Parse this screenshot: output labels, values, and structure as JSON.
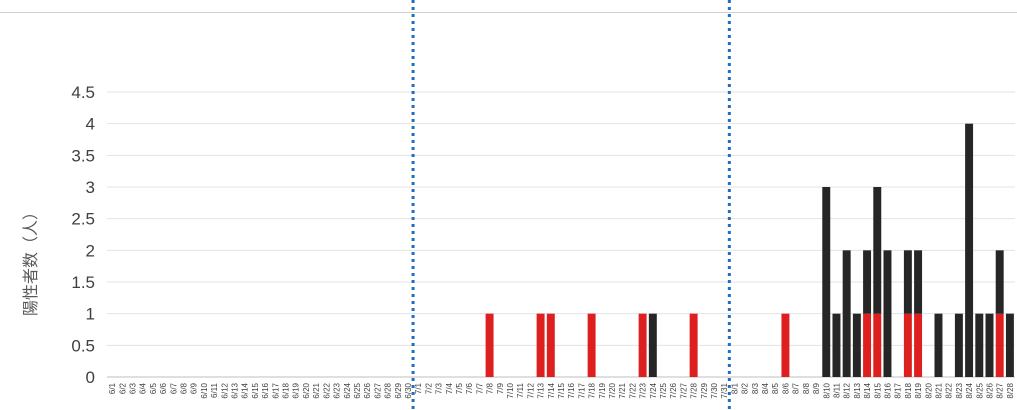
{
  "chart_data": {
    "type": "bar",
    "ylabel": "陽性者数（人）",
    "xlabel": "",
    "title": "",
    "ylim": [
      0,
      4.5
    ],
    "y_ticks": [
      "0",
      "0.5",
      "1",
      "1.5",
      "2",
      "2.5",
      "3",
      "3.5",
      "4",
      "4.5"
    ],
    "grid": true,
    "stacked": true,
    "categories": [
      "6/1",
      "6/2",
      "6/3",
      "6/4",
      "6/5",
      "6/6",
      "6/7",
      "6/8",
      "6/9",
      "6/10",
      "6/11",
      "6/12",
      "6/13",
      "6/14",
      "6/15",
      "6/16",
      "6/17",
      "6/18",
      "6/19",
      "6/20",
      "6/21",
      "6/22",
      "6/23",
      "6/24",
      "6/25",
      "6/26",
      "6/27",
      "6/28",
      "6/29",
      "6/30",
      "7/1",
      "7/2",
      "7/3",
      "7/4",
      "7/5",
      "7/6",
      "7/7",
      "7/8",
      "7/9",
      "7/10",
      "7/11",
      "7/12",
      "7/13",
      "7/14",
      "7/15",
      "7/16",
      "7/17",
      "7/18",
      "7/19",
      "7/20",
      "7/21",
      "7/22",
      "7/23",
      "7/24",
      "7/25",
      "7/26",
      "7/27",
      "7/28",
      "7/29",
      "7/30",
      "7/31",
      "8/1",
      "8/2",
      "8/3",
      "8/4",
      "8/5",
      "8/6",
      "8/7",
      "8/8",
      "8/9",
      "8/10",
      "8/11",
      "8/12",
      "8/13",
      "8/14",
      "8/15",
      "8/16",
      "8/17",
      "8/18",
      "8/19",
      "8/20",
      "8/21",
      "8/22",
      "8/23",
      "8/24",
      "8/25",
      "8/26",
      "8/27",
      "8/28"
    ],
    "series": [
      {
        "color": "#dd1f1f",
        "values": [
          0,
          0,
          0,
          0,
          0,
          0,
          0,
          0,
          0,
          0,
          0,
          0,
          0,
          0,
          0,
          0,
          0,
          0,
          0,
          0,
          0,
          0,
          0,
          0,
          0,
          0,
          0,
          0,
          0,
          0,
          0,
          0,
          0,
          0,
          0,
          0,
          0,
          1,
          0,
          0,
          0,
          0,
          1,
          1,
          0,
          0,
          0,
          1,
          0,
          0,
          0,
          0,
          1,
          0,
          0,
          0,
          0,
          1,
          0,
          0,
          0,
          0,
          0,
          0,
          0,
          0,
          1,
          0,
          0,
          0,
          0,
          0,
          0,
          0,
          1,
          1,
          0,
          0,
          1,
          1,
          0,
          0,
          0,
          0,
          0,
          0,
          0,
          1,
          0
        ]
      },
      {
        "color": "#262626",
        "values": [
          0,
          0,
          0,
          0,
          0,
          0,
          0,
          0,
          0,
          0,
          0,
          0,
          0,
          0,
          0,
          0,
          0,
          0,
          0,
          0,
          0,
          0,
          0,
          0,
          0,
          0,
          0,
          0,
          0,
          0,
          0,
          0,
          0,
          0,
          0,
          0,
          0,
          0,
          0,
          0,
          0,
          0,
          0,
          0,
          0,
          0,
          0,
          0,
          0,
          0,
          0,
          0,
          0,
          1,
          0,
          0,
          0,
          0,
          0,
          0,
          0,
          0,
          0,
          0,
          0,
          0,
          0,
          0,
          0,
          0,
          3,
          1,
          2,
          1,
          1,
          2,
          2,
          0,
          1,
          1,
          0,
          1,
          0,
          1,
          4,
          1,
          1,
          1,
          1
        ]
      }
    ],
    "divider_after": [
      "6/30",
      "7/31"
    ],
    "divider_color": "#1f6fc0"
  }
}
